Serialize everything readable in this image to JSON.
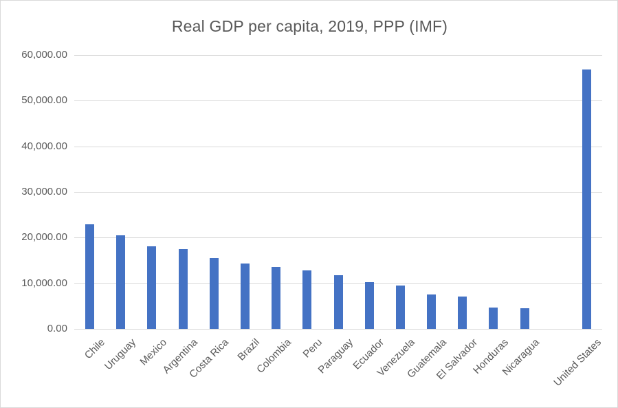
{
  "chart_data": {
    "type": "bar",
    "title": "Real GDP per capita, 2019, PPP (IMF)",
    "categories": [
      "Chile",
      "Uruguay",
      "Mexico",
      "Argentina",
      "Costa Rica",
      "Brazil",
      "Colombia",
      "Peru",
      "Paraguay",
      "Ecuador",
      "Venezuela",
      "Guatemala",
      "El Salvador",
      "Honduras",
      "Nicaragua",
      "",
      "United States"
    ],
    "values": [
      22900,
      20550,
      18050,
      17450,
      15500,
      14300,
      13550,
      12800,
      11700,
      10200,
      9450,
      7550,
      7150,
      4700,
      4600,
      null,
      56800
    ],
    "xlabel": "",
    "ylabel": "",
    "ylim": [
      0,
      60000
    ],
    "ytick_step": 10000,
    "yticks": [
      {
        "value": 0,
        "label": "0.00"
      },
      {
        "value": 10000,
        "label": "10,000.00"
      },
      {
        "value": 20000,
        "label": "20,000.00"
      },
      {
        "value": 30000,
        "label": "30,000.00"
      },
      {
        "value": 40000,
        "label": "40,000.00"
      },
      {
        "value": 50000,
        "label": "50,000.00"
      },
      {
        "value": 60000,
        "label": "60,000.00"
      }
    ],
    "grid": true,
    "legend_position": "none",
    "bar_color": "#4472C4",
    "gridline_color": "#D9D9D9",
    "text_color": "#595959",
    "frame_color": "#D9D9D9"
  }
}
